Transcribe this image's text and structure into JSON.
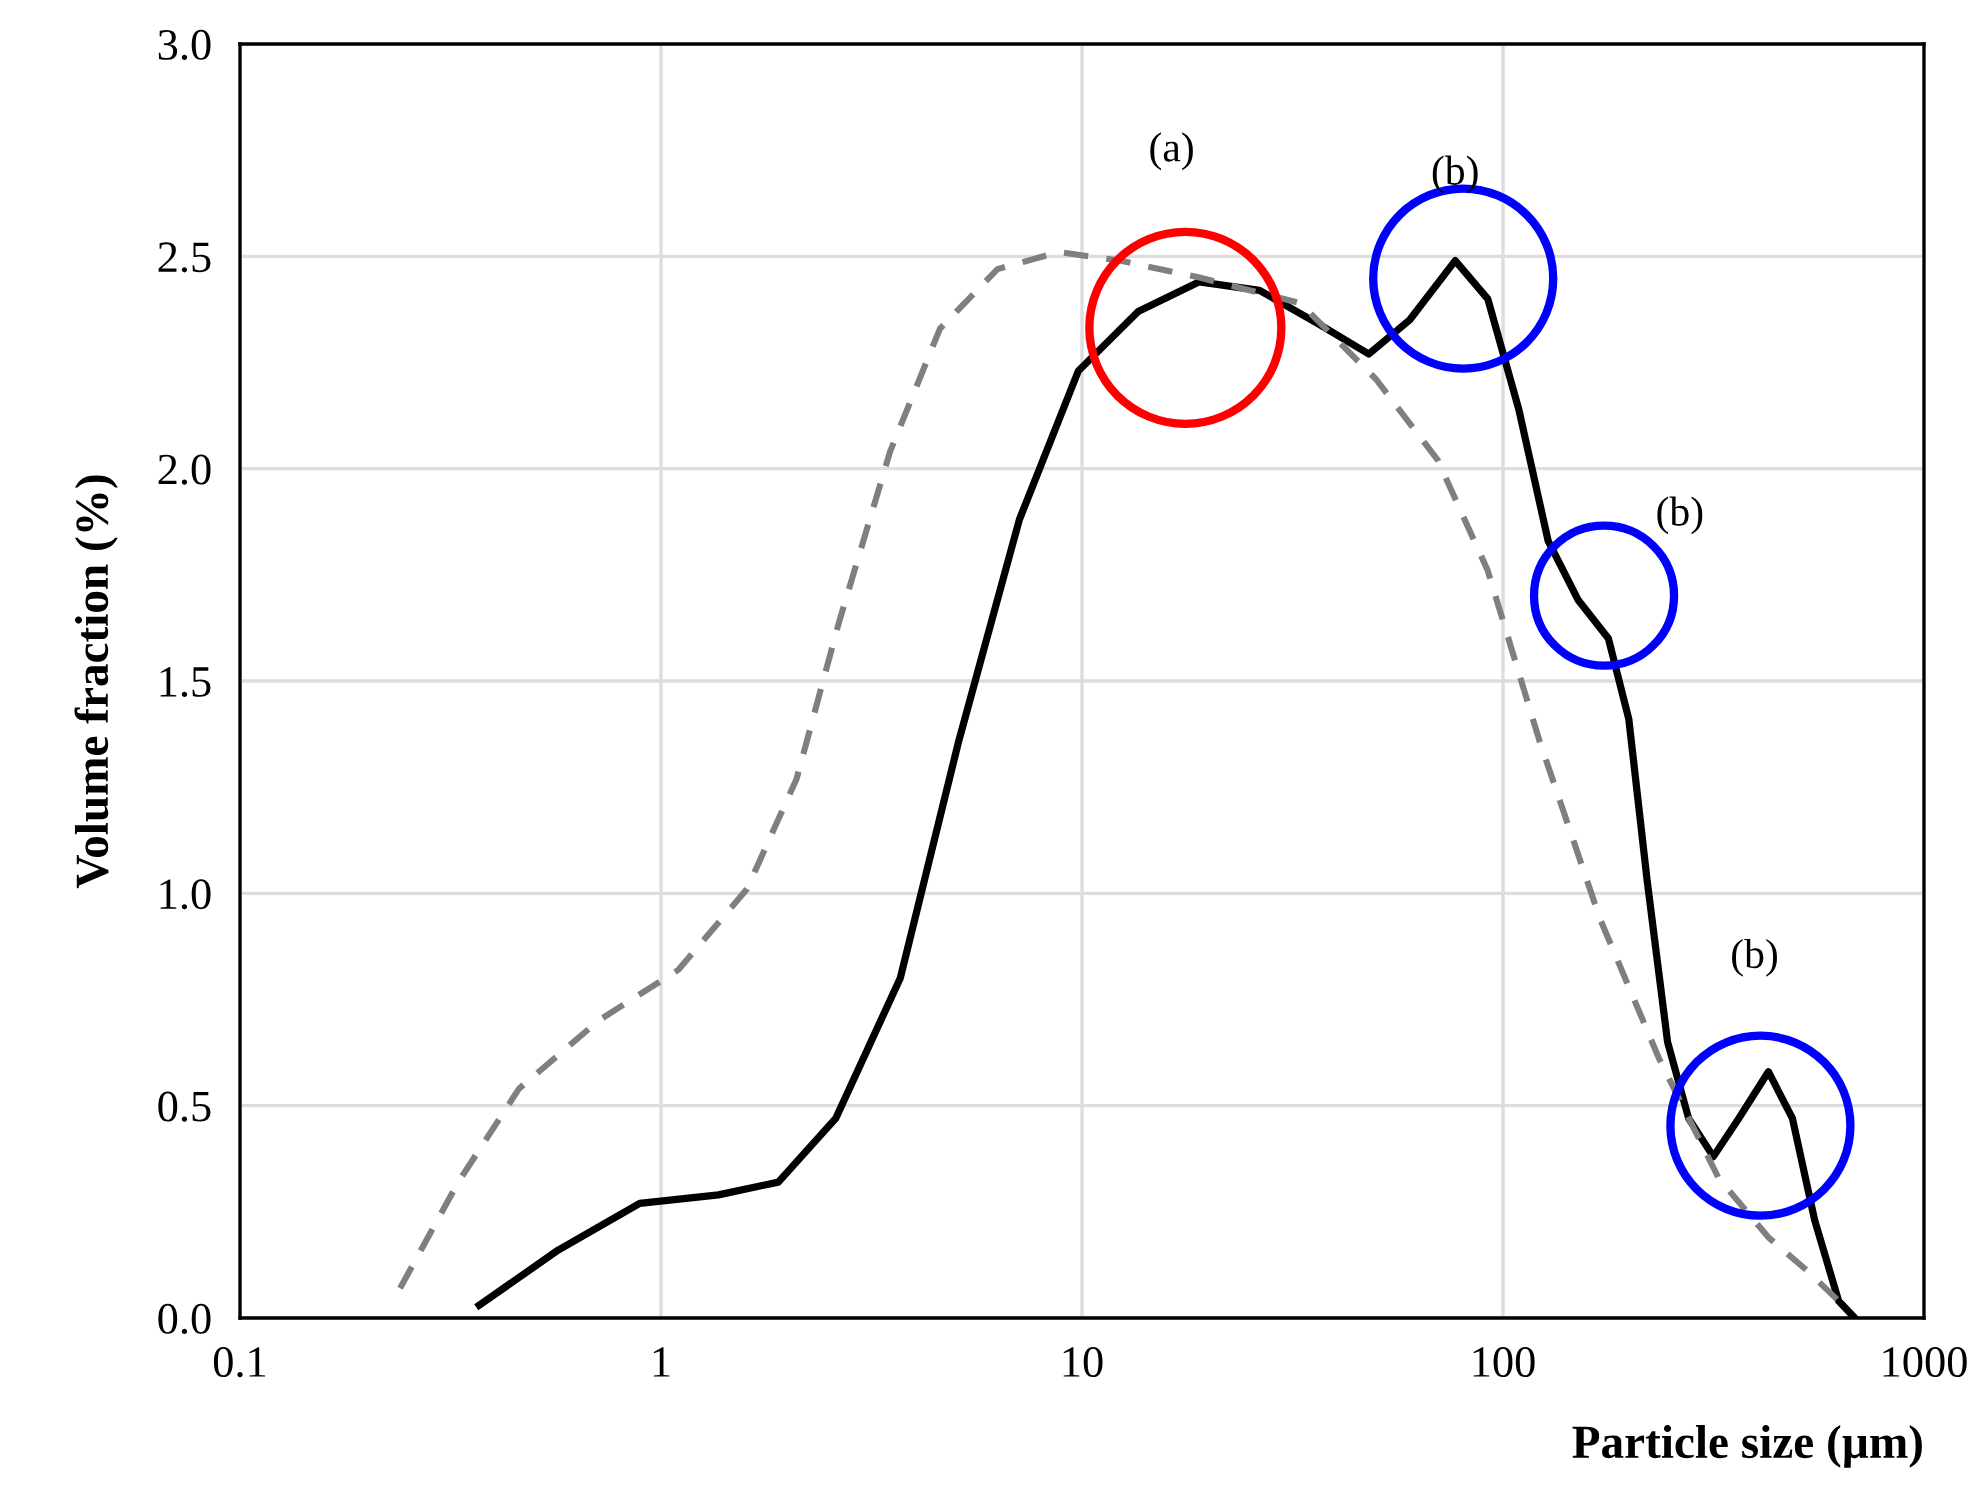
{
  "chart_data": {
    "type": "line",
    "xlabel": "Particle size (µm)",
    "ylabel": "Volume fraction (%)",
    "log": "x",
    "xlim": [
      0.1,
      1000
    ],
    "xticks": [
      0.1,
      1,
      10,
      100,
      1000
    ],
    "ylim": [
      0,
      3
    ],
    "yticks": [
      {
        "value": 0,
        "label": "0.0"
      },
      {
        "value": 0.5,
        "label": "0.5"
      },
      {
        "value": 1,
        "label": "1.0"
      },
      {
        "value": 1.5,
        "label": "1.5"
      },
      {
        "value": 2,
        "label": "2.0"
      },
      {
        "value": 2.5,
        "label": "2.5"
      },
      {
        "value": 3,
        "label": "3.0"
      }
    ],
    "grid": true,
    "marker": "none",
    "series": [
      {
        "color": "#000000",
        "line_style": "solid",
        "x": [
          0.37,
          0.57,
          0.89,
          1.37,
          1.9,
          2.6,
          3.7,
          5.1,
          7.1,
          9.8,
          13.6,
          19,
          26.4,
          36.6,
          48,
          60,
          77,
          92,
          109,
          128,
          151,
          178,
          199,
          220,
          246,
          276,
          316,
          363,
          427,
          487,
          550,
          627,
          685
        ],
        "values": [
          0.03,
          0.16,
          0.27,
          0.29,
          0.32,
          0.47,
          0.8,
          1.36,
          1.88,
          2.23,
          2.37,
          2.44,
          2.42,
          2.34,
          2.27,
          2.35,
          2.49,
          2.4,
          2.14,
          1.83,
          1.69,
          1.6,
          1.41,
          1.03,
          0.65,
          0.47,
          0.38,
          0.47,
          0.58,
          0.47,
          0.23,
          0.04,
          0.0
        ]
      },
      {
        "color": "#7f7f7f",
        "line_style": "dashed",
        "x": [
          0.24,
          0.33,
          0.46,
          0.71,
          1.1,
          1.6,
          2.1,
          2.65,
          3.5,
          4.6,
          6.3,
          8.8,
          12.3,
          19,
          33,
          50,
          70,
          92,
          122,
          170,
          235,
          325,
          427,
          530,
          627
        ],
        "values": [
          0.07,
          0.32,
          0.54,
          0.7,
          0.82,
          1.01,
          1.27,
          1.64,
          2.04,
          2.33,
          2.47,
          2.51,
          2.49,
          2.45,
          2.39,
          2.21,
          2.02,
          1.76,
          1.36,
          0.94,
          0.61,
          0.33,
          0.19,
          0.11,
          0.04
        ]
      }
    ],
    "annotations": [
      {
        "text": "(a)",
        "x": 19,
        "y": 2.44
      },
      {
        "text": "(b)",
        "x": 77,
        "y": 2.49
      },
      "(b)",
      {
        "text": "(b)",
        "x": 427,
        "y": 0.58
      }
    ]
  }
}
